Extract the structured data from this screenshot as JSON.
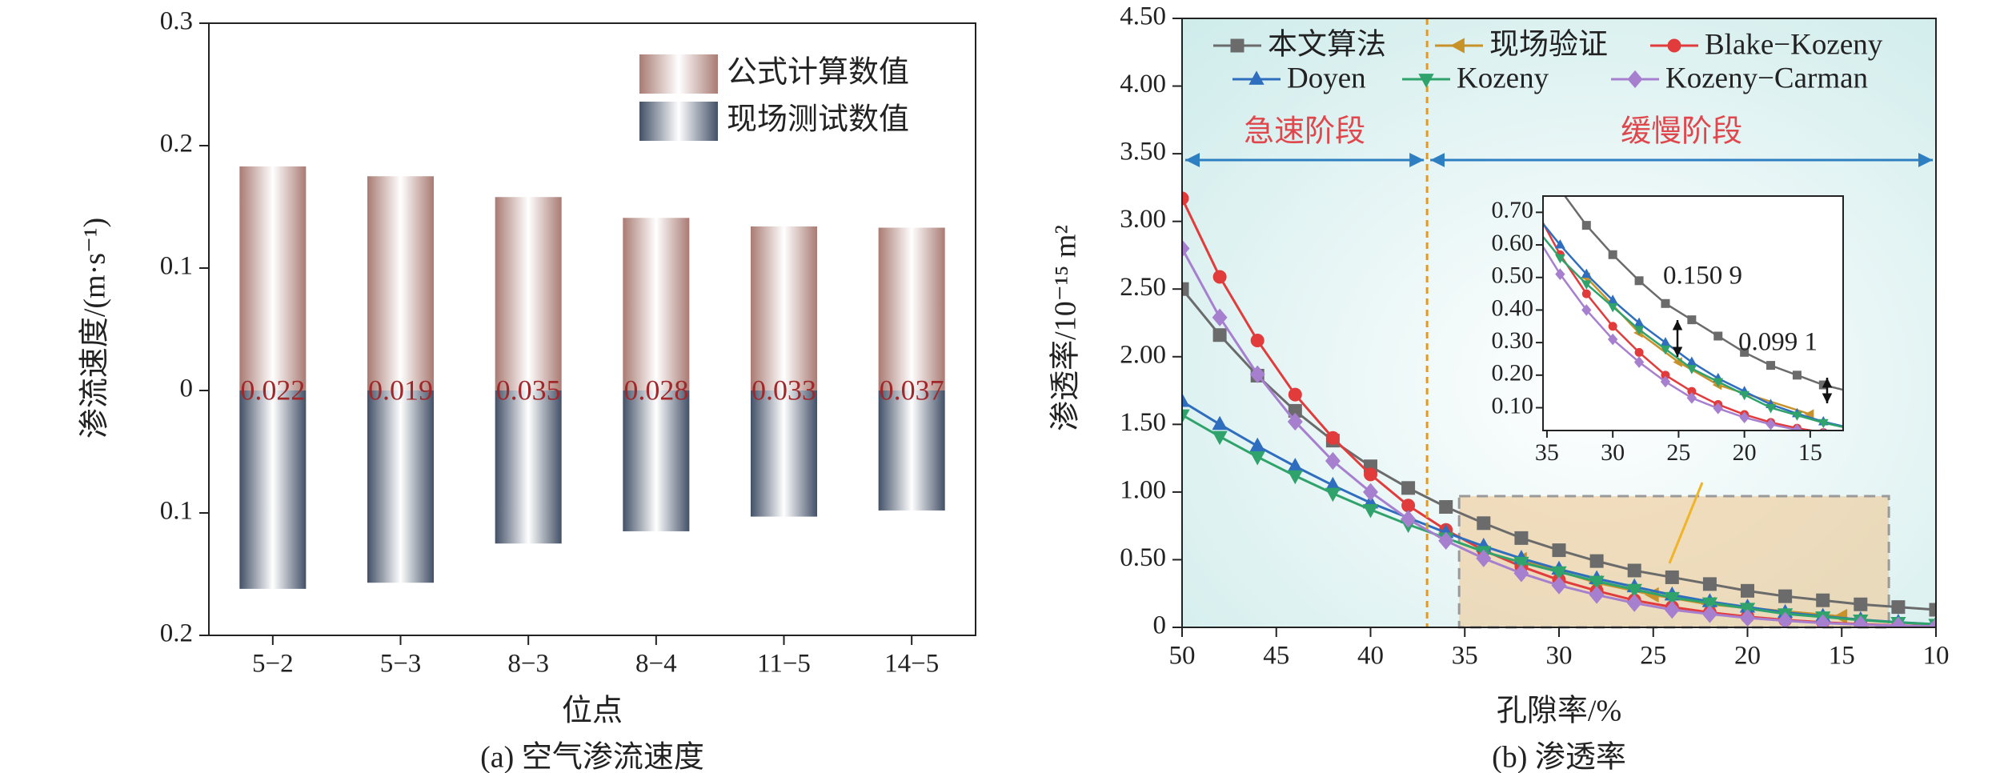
{
  "chart_data": [
    {
      "type": "bar",
      "caption": "(a) 空气渗流速度",
      "x_label": "位点",
      "y_label": "渗流速度/(m·s⁻¹)",
      "categories": [
        "5−2",
        "5−3",
        "8−3",
        "8−4",
        "11−5",
        "14−5"
      ],
      "series": [
        {
          "name": "公式计算数值",
          "color": "#a97b73",
          "values": [
            0.183,
            0.175,
            0.158,
            0.141,
            0.134,
            0.133
          ]
        },
        {
          "name": "现场测试数值",
          "color": "#425067",
          "values": [
            -0.162,
            -0.157,
            -0.125,
            -0.115,
            -0.103,
            -0.098
          ]
        }
      ],
      "annotations": [
        "0.022",
        "0.019",
        "0.035",
        "0.028",
        "0.033",
        "0.037"
      ],
      "annotation_color": "#a0282a",
      "ylim": [
        -0.2,
        0.3
      ],
      "yticks": [
        0.3,
        0.2,
        0.1,
        0,
        {
          "value": -0.1,
          "label": "0.1"
        },
        {
          "value": -0.2,
          "label": "0.2"
        }
      ],
      "legend": "upper right"
    },
    {
      "type": "line",
      "caption": "(b) 渗透率",
      "x_label": "孔隙率/%",
      "y_label": "渗透率/10⁻¹⁵ m²",
      "x": [
        50,
        48,
        46,
        44,
        42,
        40,
        38,
        36,
        34,
        32,
        30,
        28,
        26,
        24,
        22,
        20,
        18,
        16,
        14,
        12,
        10
      ],
      "series": [
        {
          "name": "本文算法",
          "color": "#6b6b6b",
          "marker": "square",
          "values": [
            2.5,
            2.16,
            1.86,
            1.6,
            1.38,
            1.19,
            1.03,
            0.89,
            0.77,
            0.66,
            0.57,
            0.49,
            0.42,
            0.37,
            0.32,
            0.27,
            0.23,
            0.2,
            0.17,
            0.15,
            0.13
          ]
        },
        {
          "name": "现场验证",
          "color": "#c8922a",
          "marker": "triangle-left",
          "x": [
            32,
            28,
            25,
            22,
            15
          ],
          "values": [
            0.5,
            0.33,
            0.24,
            0.17,
            0.08
          ]
        },
        {
          "name": "Blake−Kozeny",
          "color": "#e23b3b",
          "marker": "circle",
          "values": [
            3.17,
            2.59,
            2.12,
            1.72,
            1.4,
            1.13,
            0.9,
            0.72,
            0.57,
            0.45,
            0.35,
            0.27,
            0.2,
            0.15,
            0.11,
            0.079,
            0.055,
            0.037,
            0.024,
            0.014,
            0.008
          ]
        },
        {
          "name": "Doyen",
          "color": "#2f6ebf",
          "marker": "triangle-up",
          "values": [
            1.67,
            1.5,
            1.34,
            1.19,
            1.05,
            0.92,
            0.81,
            0.7,
            0.6,
            0.51,
            0.43,
            0.36,
            0.3,
            0.24,
            0.19,
            0.15,
            0.11,
            0.082,
            0.057,
            0.038,
            0.023
          ]
        },
        {
          "name": "Kozeny",
          "color": "#2fa36b",
          "marker": "triangle-down",
          "values": [
            1.57,
            1.41,
            1.26,
            1.12,
            0.99,
            0.87,
            0.76,
            0.66,
            0.56,
            0.48,
            0.41,
            0.34,
            0.28,
            0.22,
            0.18,
            0.14,
            0.1,
            0.077,
            0.054,
            0.036,
            0.022
          ]
        },
        {
          "name": "Kozeny−Carman",
          "color": "#a77fcf",
          "marker": "diamond",
          "values": [
            2.8,
            2.29,
            1.87,
            1.52,
            1.23,
            1.0,
            0.8,
            0.64,
            0.51,
            0.4,
            0.31,
            0.24,
            0.18,
            0.13,
            0.098,
            0.07,
            0.049,
            0.032,
            0.021,
            0.012,
            0.007
          ]
        }
      ],
      "xlim": [
        50,
        10
      ],
      "xticks": [
        50,
        45,
        40,
        35,
        30,
        25,
        20,
        15,
        10
      ],
      "ylim": [
        0,
        4.5
      ],
      "yticks": [
        0,
        {
          "value": 0.5,
          "label": "0.50"
        },
        {
          "value": 1,
          "label": "1.00"
        },
        {
          "value": 1.5,
          "label": "1.50"
        },
        {
          "value": 2,
          "label": "2.00"
        },
        {
          "value": 2.5,
          "label": "2.50"
        },
        {
          "value": 3,
          "label": "3.00"
        },
        {
          "value": 3.5,
          "label": "3.50"
        },
        {
          "value": 4,
          "label": "4.00"
        },
        {
          "value": 4.5,
          "label": "4.50"
        }
      ],
      "phases": [
        "急速阶段",
        "缓慢阶段"
      ],
      "phase_boundary": 37,
      "legend": "upper center",
      "inset": {
        "xlim": [
          35.3,
          12.5
        ],
        "ylim": [
          0.03,
          0.75
        ],
        "xticks": [
          35,
          30,
          25,
          20,
          15
        ],
        "yticks": [
          {
            "value": 0.1,
            "label": "0.10"
          },
          {
            "value": 0.2,
            "label": "0.20"
          },
          {
            "value": 0.3,
            "label": "0.30"
          },
          {
            "value": 0.4,
            "label": "0.40"
          },
          {
            "value": 0.5,
            "label": "0.50"
          },
          {
            "value": 0.6,
            "label": "0.60"
          },
          {
            "value": 0.7,
            "label": "0.70"
          }
        ],
        "annotations": [
          "0.150 9",
          "0.099 1"
        ]
      }
    }
  ]
}
